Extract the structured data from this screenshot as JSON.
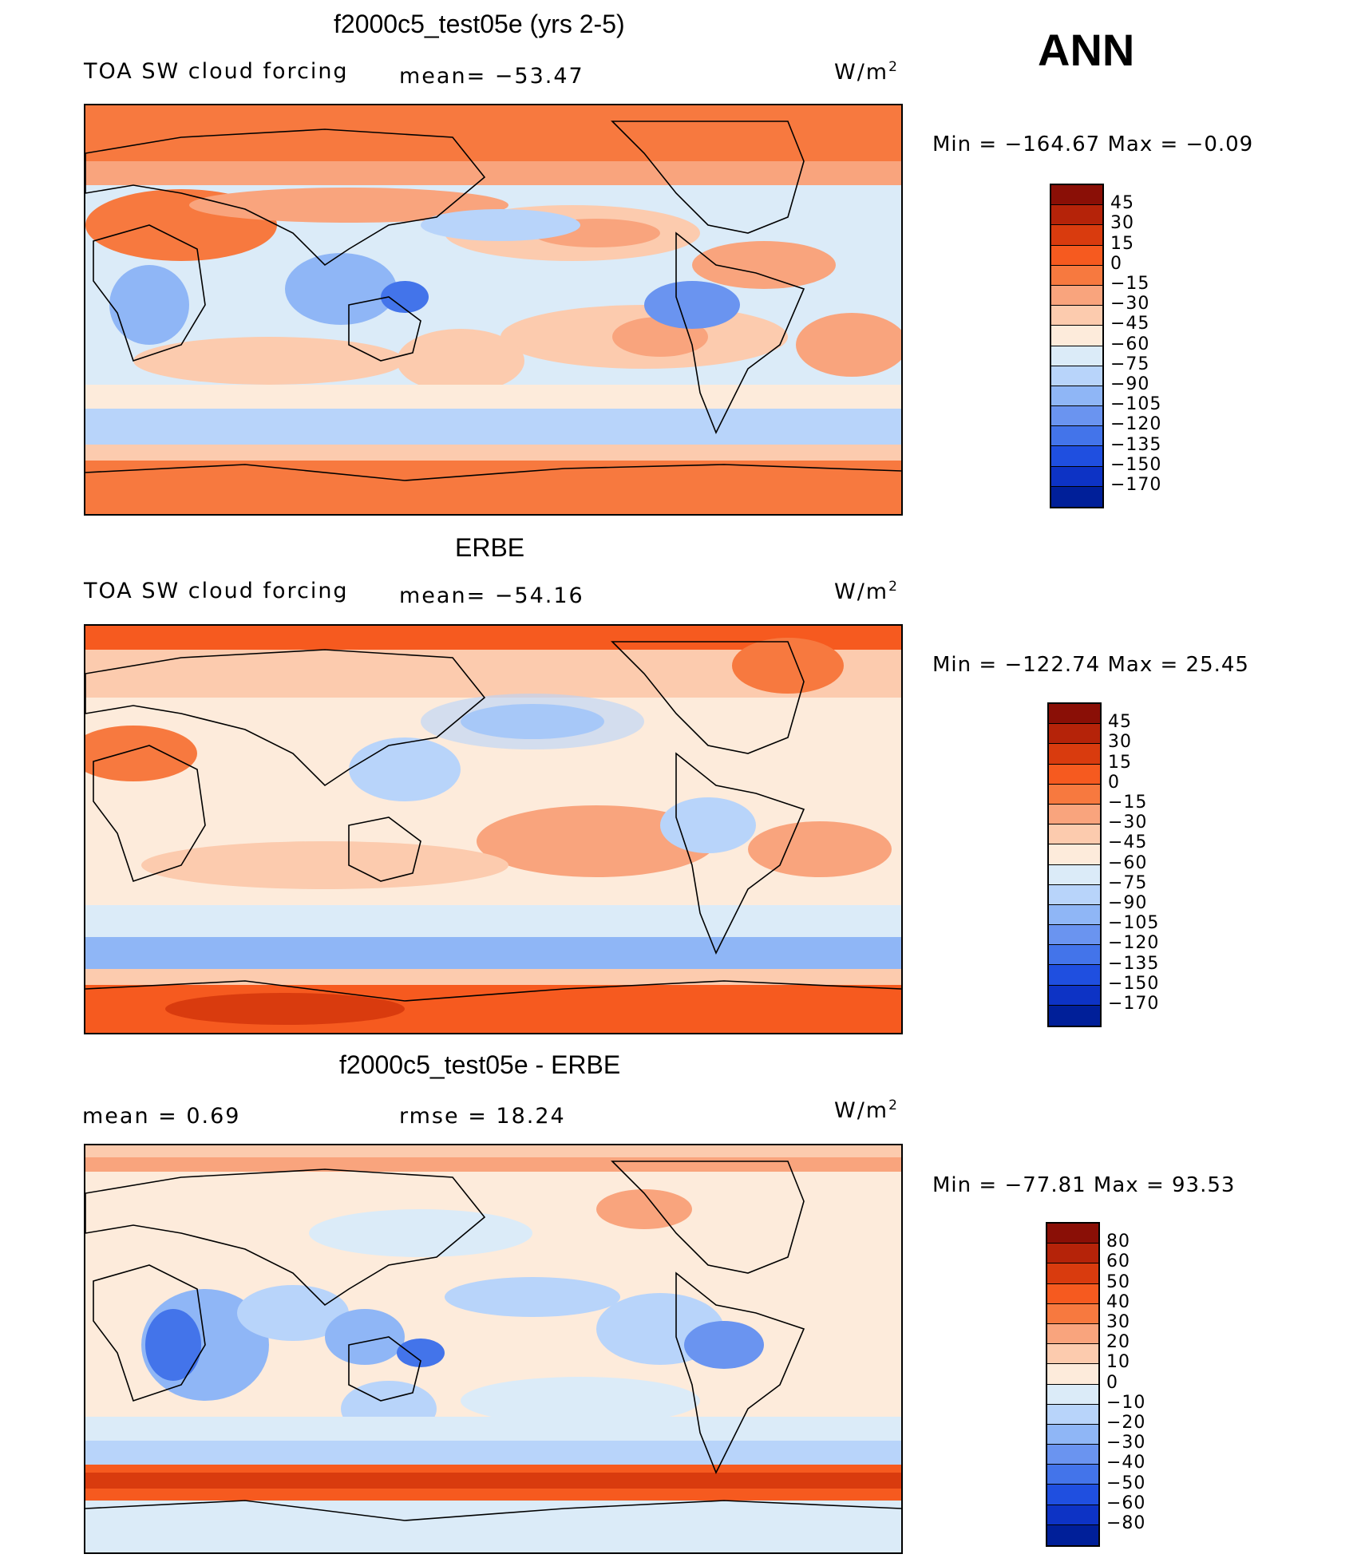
{
  "season": "ANN",
  "panels": [
    {
      "title": "f2000c5_test05e (yrs 2-5)",
      "left_label": "TOA SW cloud forcing",
      "center_label": "mean= −53.47",
      "units": "W/m",
      "units_sup": "2",
      "min_max": "Min  =  −164.67  Max  =   −0.09",
      "colorbar": {
        "labels": [
          "45",
          "30",
          "15",
          "0",
          "−15",
          "−30",
          "−45",
          "−60",
          "−75",
          "−90",
          "−105",
          "−120",
          "−135",
          "−150",
          "−170"
        ],
        "colors": [
          "#8a0f06",
          "#b52309",
          "#d93b0e",
          "#f65a1f",
          "#f7793f",
          "#f9a47d",
          "#fccbae",
          "#fdebdb",
          "#dbebf8",
          "#b8d4fa",
          "#8fb6f6",
          "#6a94f0",
          "#4374ea",
          "#1f4fe0",
          "#0d33c5",
          "#001f99"
        ]
      },
      "map_icon": "world-map-pacific-centered"
    },
    {
      "title": "ERBE",
      "left_label": "TOA SW cloud forcing",
      "center_label": "mean= −54.16",
      "units": "W/m",
      "units_sup": "2",
      "min_max": "Min  =  −122.74  Max  =   25.45",
      "colorbar": {
        "labels": [
          "45",
          "30",
          "15",
          "0",
          "−15",
          "−30",
          "−45",
          "−60",
          "−75",
          "−90",
          "−105",
          "−120",
          "−135",
          "−150",
          "−170"
        ],
        "colors": [
          "#8a0f06",
          "#b52309",
          "#d93b0e",
          "#f65a1f",
          "#f7793f",
          "#f9a47d",
          "#fccbae",
          "#fdebdb",
          "#dbebf8",
          "#b8d4fa",
          "#8fb6f6",
          "#6a94f0",
          "#4374ea",
          "#1f4fe0",
          "#0d33c5",
          "#001f99"
        ]
      },
      "map_icon": "world-map-pacific-centered"
    },
    {
      "title": "f2000c5_test05e - ERBE",
      "left_label": "mean  =    0.69",
      "center_label": "rmse  =    18.24",
      "units": "W/m",
      "units_sup": "2",
      "min_max": "Min  =  −77.81  Max  =   93.53",
      "colorbar": {
        "labels": [
          "80",
          "60",
          "50",
          "40",
          "30",
          "20",
          "10",
          "0",
          "−10",
          "−20",
          "−30",
          "−40",
          "−50",
          "−60",
          "−80"
        ],
        "colors": [
          "#8a0f06",
          "#b52309",
          "#d93b0e",
          "#f65a1f",
          "#f7793f",
          "#f9a47d",
          "#fccbae",
          "#fdebdb",
          "#dbebf8",
          "#b8d4fa",
          "#8fb6f6",
          "#6a94f0",
          "#4374ea",
          "#1f4fe0",
          "#0d33c5",
          "#001f99"
        ]
      },
      "map_icon": "world-map-pacific-centered"
    }
  ]
}
